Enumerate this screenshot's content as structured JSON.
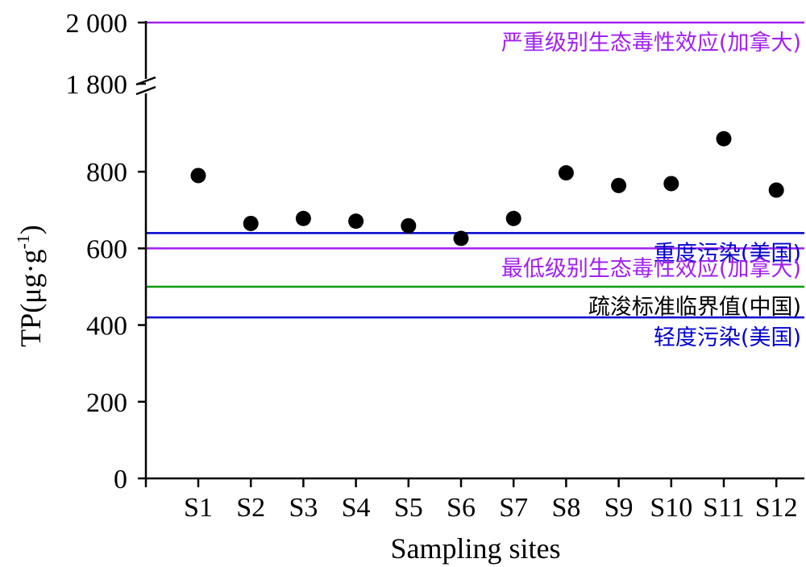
{
  "chart_data": {
    "type": "scatter",
    "xlabel": "Sampling sites",
    "ylabel": "TP(μg·g",
    "ylabel_sup": "-1",
    "ylabel_close": ")",
    "categories": [
      "S1",
      "S2",
      "S3",
      "S4",
      "S5",
      "S6",
      "S7",
      "S8",
      "S9",
      "S10",
      "S11",
      "S12"
    ],
    "values": [
      790,
      665,
      678,
      671,
      659,
      626,
      678,
      797,
      764,
      769,
      886,
      752
    ],
    "y_ticks_lower": [
      {
        "value": 0,
        "label": "0"
      },
      {
        "value": 200,
        "label": "200"
      },
      {
        "value": 400,
        "label": "400"
      },
      {
        "value": 600,
        "label": "600"
      },
      {
        "value": 800,
        "label": "800"
      }
    ],
    "y_ticks_upper": [
      {
        "value": 1800,
        "label": "1 800"
      },
      {
        "value": 2000,
        "label": "2 000"
      }
    ],
    "ylim_lower": [
      0,
      1000
    ],
    "ylim_upper": [
      1800,
      2000
    ],
    "axis_break": true,
    "reference_lines": [
      {
        "value": 2000,
        "label": "严重级别生态毒性效应(加拿大)",
        "color": "#a020f0"
      },
      {
        "value": 640,
        "label": "重度污染(美国)",
        "color": "#0000cd"
      },
      {
        "value": 600,
        "label": "最低级别生态毒性效应(加拿大)",
        "color": "#a020f0"
      },
      {
        "value": 500,
        "label": "疏浚标准临界值(中国)",
        "color": "#009900",
        "label_color": "#000000"
      },
      {
        "value": 420,
        "label": "轻度污染(美国)",
        "color": "#0000cd"
      }
    ],
    "marker_color": "#000000"
  }
}
